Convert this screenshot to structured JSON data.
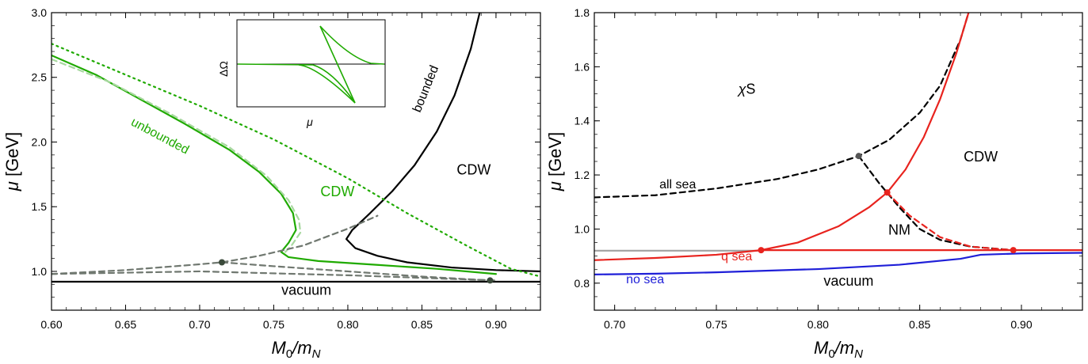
{
  "chart_data": [
    {
      "type": "line",
      "xlabel": "M0/mN",
      "ylabel": "μ [GeV]",
      "xlim": [
        0.6,
        0.93
      ],
      "ylim": [
        0.7,
        3.0
      ],
      "xticks": [
        "0.60",
        "0.65",
        "0.70",
        "0.75",
        "0.80",
        "0.85",
        "0.90"
      ],
      "yticks": [
        "1.0",
        "1.5",
        "2.0",
        "2.5",
        "3.0"
      ],
      "grid": false,
      "series": [
        {
          "style": "solid",
          "color": "#000000",
          "points": [
            [
              0.6,
              0.92
            ],
            [
              0.93,
              0.92
            ]
          ]
        },
        {
          "style": "solid",
          "color": "#000000",
          "points": [
            [
              0.93,
              1.0
            ],
            [
              0.9,
              1.01
            ],
            [
              0.87,
              1.03
            ],
            [
              0.84,
              1.07
            ],
            [
              0.82,
              1.12
            ],
            [
              0.805,
              1.18
            ],
            [
              0.799,
              1.25
            ],
            [
              0.803,
              1.32
            ],
            [
              0.815,
              1.45
            ],
            [
              0.83,
              1.62
            ],
            [
              0.845,
              1.82
            ],
            [
              0.86,
              2.08
            ],
            [
              0.872,
              2.36
            ],
            [
              0.883,
              2.72
            ],
            [
              0.889,
              3.0
            ]
          ]
        },
        {
          "style": "solid",
          "color": "#1faa00",
          "points": [
            [
              0.6,
              2.67
            ],
            [
              0.63,
              2.52
            ],
            [
              0.66,
              2.33
            ],
            [
              0.69,
              2.14
            ],
            [
              0.72,
              1.94
            ],
            [
              0.74,
              1.77
            ],
            [
              0.755,
              1.6
            ],
            [
              0.763,
              1.45
            ],
            [
              0.765,
              1.32
            ],
            [
              0.76,
              1.22
            ],
            [
              0.755,
              1.15
            ],
            [
              0.76,
              1.11
            ],
            [
              0.78,
              1.08
            ],
            [
              0.82,
              1.05
            ],
            [
              0.86,
              1.02
            ],
            [
              0.9,
              0.98
            ]
          ]
        },
        {
          "style": "dashed",
          "color": "#a8d8a0",
          "points": [
            [
              0.6,
              2.64
            ],
            [
              0.64,
              2.46
            ],
            [
              0.68,
              2.22
            ],
            [
              0.72,
              1.96
            ],
            [
              0.745,
              1.74
            ],
            [
              0.76,
              1.55
            ],
            [
              0.767,
              1.4
            ],
            [
              0.768,
              1.3
            ],
            [
              0.762,
              1.2
            ],
            [
              0.757,
              1.14
            ]
          ]
        },
        {
          "style": "dotted",
          "color": "#1faa00",
          "points": [
            [
              0.6,
              2.76
            ],
            [
              0.65,
              2.52
            ],
            [
              0.7,
              2.28
            ],
            [
              0.75,
              2.02
            ],
            [
              0.8,
              1.72
            ],
            [
              0.84,
              1.45
            ],
            [
              0.88,
              1.2
            ],
            [
              0.91,
              1.02
            ],
            [
              0.93,
              0.96
            ]
          ]
        },
        {
          "style": "dashed",
          "color": "#707870",
          "points": [
            [
              0.6,
              0.98
            ],
            [
              0.65,
              1.01
            ],
            [
              0.7,
              1.055
            ],
            [
              0.715,
              1.07
            ],
            [
              0.74,
              1.12
            ],
            [
              0.77,
              1.2
            ],
            [
              0.8,
              1.33
            ],
            [
              0.82,
              1.43
            ]
          ]
        },
        {
          "style": "dashed",
          "color": "#707870",
          "points": [
            [
              0.6,
              0.98
            ],
            [
              0.7,
              1.0
            ],
            [
              0.8,
              0.97
            ],
            [
              0.9,
              0.93
            ]
          ]
        },
        {
          "style": "dashed",
          "color": "#707870",
          "points": [
            [
              0.715,
              1.07
            ],
            [
              0.75,
              1.04
            ],
            [
              0.8,
              1.0
            ],
            [
              0.85,
              0.96
            ],
            [
              0.896,
              0.93
            ]
          ]
        }
      ],
      "markers": [
        [
          0.715,
          1.07
        ],
        [
          0.896,
          0.93
        ]
      ],
      "annotations": [
        {
          "text": "unbounded",
          "x": 0.672,
          "y": 2.02,
          "color": "#1faa00",
          "rotate": 28
        },
        {
          "text": "bounded",
          "x": 0.855,
          "y": 2.4,
          "color": "#000000",
          "rotate": -68
        },
        {
          "text": "CDW",
          "x": 0.793,
          "y": 1.58,
          "color": "#1faa00",
          "rotate": 0
        },
        {
          "text": "CDW",
          "x": 0.885,
          "y": 1.75,
          "color": "#000000",
          "rotate": 0
        },
        {
          "text": "vacuum",
          "x": 0.772,
          "y": 0.82,
          "color": "#000000",
          "rotate": 0
        }
      ],
      "inset": {
        "xlabel": "μ",
        "ylabel": "ΔΩ"
      }
    },
    {
      "type": "line",
      "xlabel": "M0/mN",
      "ylabel": "μ [GeV]",
      "xlim": [
        0.69,
        0.93
      ],
      "ylim": [
        0.7,
        1.8
      ],
      "xticks": [
        "0.70",
        "0.75",
        "0.80",
        "0.85",
        "0.90"
      ],
      "yticks": [
        "0.8",
        "1.0",
        "1.2",
        "1.4",
        "1.6",
        "1.8"
      ],
      "grid": false,
      "series": [
        {
          "name": "all sea",
          "style": "dashed",
          "color": "#000000",
          "points": [
            [
              0.69,
              1.117
            ],
            [
              0.72,
              1.125
            ],
            [
              0.75,
              1.15
            ],
            [
              0.78,
              1.185
            ],
            [
              0.8,
              1.22
            ],
            [
              0.82,
              1.27
            ],
            [
              0.835,
              1.33
            ],
            [
              0.85,
              1.43
            ],
            [
              0.86,
              1.53
            ],
            [
              0.87,
              1.7
            ],
            [
              0.874,
              1.8
            ]
          ]
        },
        {
          "style": "dashed",
          "color": "#000000",
          "points": [
            [
              0.82,
              1.27
            ],
            [
              0.83,
              1.17
            ],
            [
              0.84,
              1.08
            ],
            [
              0.85,
              1.0
            ],
            [
              0.86,
              0.96
            ],
            [
              0.875,
              0.935
            ],
            [
              0.896,
              0.922
            ]
          ]
        },
        {
          "style": "solid",
          "color": "#a0a0a0",
          "points": [
            [
              0.69,
              0.92
            ],
            [
              0.772,
              0.92
            ]
          ]
        },
        {
          "name": "q sea",
          "style": "solid",
          "color": "#e8231e",
          "points": [
            [
              0.69,
              0.885
            ],
            [
              0.72,
              0.893
            ],
            [
              0.75,
              0.905
            ],
            [
              0.772,
              0.922
            ],
            [
              0.79,
              0.95
            ],
            [
              0.81,
              1.01
            ],
            [
              0.825,
              1.08
            ],
            [
              0.834,
              1.135
            ],
            [
              0.843,
              1.22
            ],
            [
              0.852,
              1.34
            ],
            [
              0.86,
              1.48
            ],
            [
              0.868,
              1.65
            ],
            [
              0.874,
              1.8
            ]
          ]
        },
        {
          "style": "solid",
          "color": "#e8231e",
          "points": [
            [
              0.772,
              0.922
            ],
            [
              0.93,
              0.922
            ]
          ]
        },
        {
          "style": "dashed",
          "color": "#e8231e",
          "points": [
            [
              0.834,
              1.135
            ],
            [
              0.845,
              1.05
            ],
            [
              0.86,
              0.97
            ],
            [
              0.875,
              0.935
            ],
            [
              0.896,
              0.922
            ]
          ]
        },
        {
          "name": "no sea",
          "style": "solid",
          "color": "#1f1fd8",
          "points": [
            [
              0.69,
              0.832
            ],
            [
              0.72,
              0.835
            ],
            [
              0.75,
              0.84
            ],
            [
              0.8,
              0.852
            ],
            [
              0.84,
              0.868
            ],
            [
              0.87,
              0.89
            ],
            [
              0.88,
              0.905
            ],
            [
              0.9,
              0.91
            ],
            [
              0.93,
              0.912
            ]
          ]
        }
      ],
      "markers": [
        {
          "x": 0.82,
          "y": 1.27,
          "color": "#555555"
        },
        {
          "x": 0.834,
          "y": 1.135,
          "color": "#e8231e"
        },
        {
          "x": 0.772,
          "y": 0.922,
          "color": "#e8231e"
        },
        {
          "x": 0.896,
          "y": 0.922,
          "color": "#e8231e"
        }
      ],
      "annotations": [
        {
          "text": "χS",
          "x": 0.765,
          "y": 1.5,
          "color": "#000000",
          "italicFirst": true
        },
        {
          "text": "CDW",
          "x": 0.88,
          "y": 1.25,
          "color": "#000000"
        },
        {
          "text": "NM",
          "x": 0.84,
          "y": 0.98,
          "color": "#000000"
        },
        {
          "text": "vacuum",
          "x": 0.815,
          "y": 0.79,
          "color": "#000000"
        },
        {
          "text": "all sea",
          "x": 0.731,
          "y": 1.15,
          "color": "#000000"
        },
        {
          "text": "q sea",
          "x": 0.76,
          "y": 0.885,
          "color": "#e8231e"
        },
        {
          "text": "no sea",
          "x": 0.715,
          "y": 0.8,
          "color": "#1f1fd8"
        }
      ]
    }
  ]
}
